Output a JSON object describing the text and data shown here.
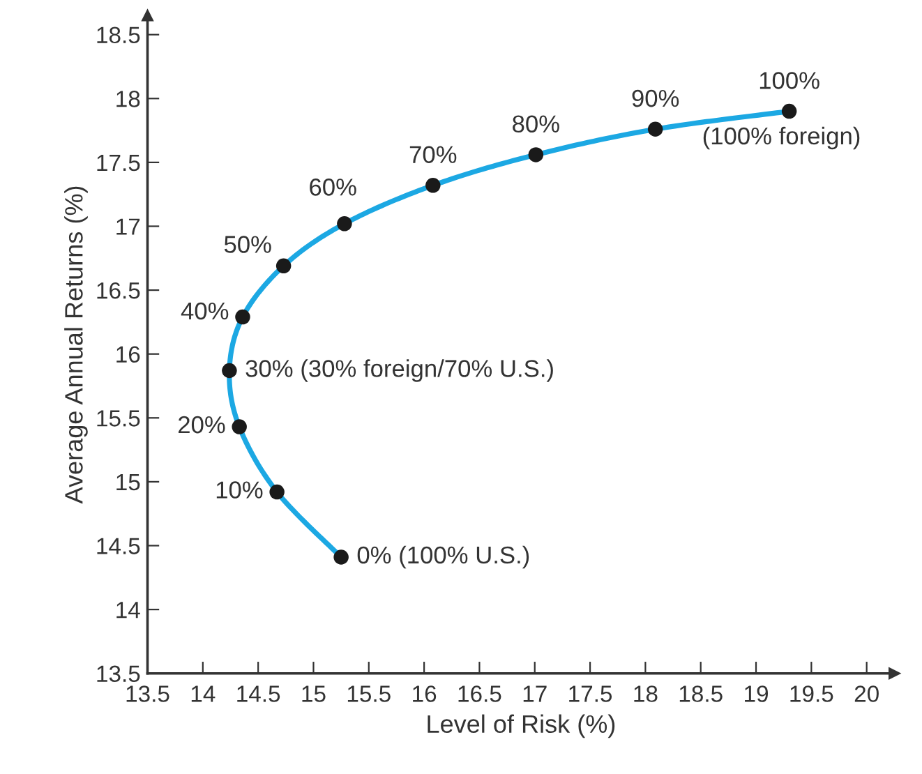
{
  "chart_data": {
    "type": "line",
    "xlabel": "Level of Risk (%)",
    "ylabel": "Average Annual Returns (%)",
    "xlim": [
      13.5,
      20.25
    ],
    "ylim": [
      13.5,
      18.65
    ],
    "xticks": [
      13.5,
      14,
      14.5,
      15,
      15.5,
      16,
      16.5,
      17,
      17.5,
      18,
      18.5,
      19,
      19.5,
      20
    ],
    "yticks": [
      13.5,
      14,
      14.5,
      15,
      15.5,
      16,
      16.5,
      17,
      17.5,
      18,
      18.5
    ],
    "grid": false,
    "legend": false,
    "series": [
      {
        "color": "#1ca8e3",
        "marker": "none",
        "x": [
          15.25,
          14.67,
          14.33,
          14.24,
          14.36,
          14.73,
          15.28,
          16.08,
          17.01,
          18.09,
          19.3
        ],
        "values": [
          14.41,
          14.92,
          15.43,
          15.87,
          16.29,
          16.69,
          17.02,
          17.32,
          17.56,
          17.76,
          17.9
        ]
      },
      {
        "type": "scatter",
        "color": "#1a1a1a",
        "marker": "circle",
        "x": [
          15.25,
          14.67,
          14.33,
          14.24,
          14.36,
          14.73,
          15.28,
          16.08,
          17.01,
          18.09,
          19.3
        ],
        "values": [
          14.41,
          14.92,
          15.43,
          15.87,
          16.29,
          16.69,
          17.02,
          17.32,
          17.56,
          17.76,
          17.9
        ]
      }
    ],
    "annotations": [
      {
        "text": "0% (100% U.S.)",
        "x": 15.25,
        "y": 14.41
      },
      {
        "text": "10%",
        "x": 14.67,
        "y": 14.92
      },
      {
        "text": "20%",
        "x": 14.33,
        "y": 15.43
      },
      {
        "text": "30% (30% foreign/70% U.S.)",
        "x": 14.24,
        "y": 15.87
      },
      {
        "text": "40%",
        "x": 14.36,
        "y": 16.29
      },
      {
        "text": "50%",
        "x": 14.73,
        "y": 16.69
      },
      {
        "text": "60%",
        "x": 15.28,
        "y": 17.02
      },
      {
        "text": "70%",
        "x": 16.08,
        "y": 17.32
      },
      {
        "text": "80%",
        "x": 17.01,
        "y": 17.56
      },
      {
        "text": "90%",
        "x": 18.09,
        "y": 17.76
      },
      {
        "text": "100%",
        "x": 19.3,
        "y": 17.9
      },
      {
        "text": "(100% foreign)",
        "x": 19.3,
        "y": 17.9
      }
    ]
  }
}
